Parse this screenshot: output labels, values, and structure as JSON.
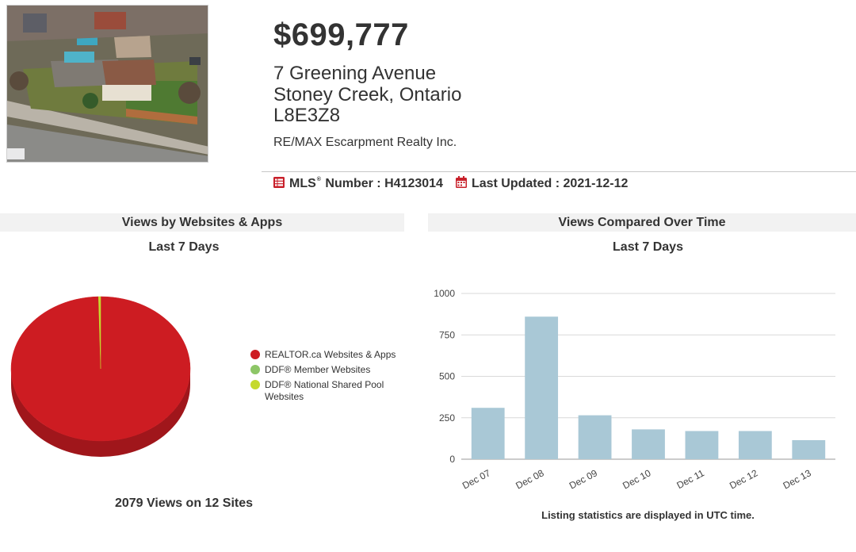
{
  "listing": {
    "price": "$699,777",
    "address_line1": "7 Greening Avenue",
    "address_line2": "Stoney Creek, Ontario",
    "postal_code": "L8E3Z8",
    "brokerage": "RE/MAX Escarpment Realty Inc.",
    "mls_label_pre": "MLS",
    "mls_label_post": "Number :",
    "mls_number": "H4123014",
    "updated_label": "Last Updated :",
    "updated_value": "2021-12-12"
  },
  "icons": {
    "mls": "list-icon",
    "updated": "calendar-icon",
    "accent_color": "#c8202a"
  },
  "sections": {
    "websites_title": "Views by Websites & Apps",
    "websites_period": "Last 7 Days",
    "websites_footer": "2079 Views on 12 Sites",
    "time_title": "Views Compared Over Time",
    "time_period": "Last 7 Days",
    "time_footer": "Listing statistics are displayed in UTC time."
  },
  "chart_data": [
    {
      "type": "pie",
      "title": "Views by Websites & Apps",
      "subtitle": "Last 7 Days",
      "style": "3d",
      "legend_position": "right",
      "slices": [
        {
          "name": "REALTOR.ca Websites & Apps",
          "value": 2071,
          "color": "#cd1c22"
        },
        {
          "name": "DDF® Member Websites",
          "value": 0,
          "color": "#8dc667"
        },
        {
          "name": "DDF® National Shared Pool Websites",
          "value": 8,
          "color": "#c5d92d"
        }
      ]
    },
    {
      "type": "bar",
      "title": "Views Compared Over Time",
      "subtitle": "Last 7 Days",
      "categories": [
        "Dec 07",
        "Dec 08",
        "Dec 09",
        "Dec 10",
        "Dec 11",
        "Dec 12",
        "Dec 13"
      ],
      "values": [
        310,
        860,
        265,
        180,
        170,
        170,
        115
      ],
      "ylim": [
        0,
        1000
      ],
      "yticks": [
        0,
        250,
        500,
        750,
        1000
      ],
      "grid": true,
      "bar_color": "#a9c8d6"
    }
  ]
}
